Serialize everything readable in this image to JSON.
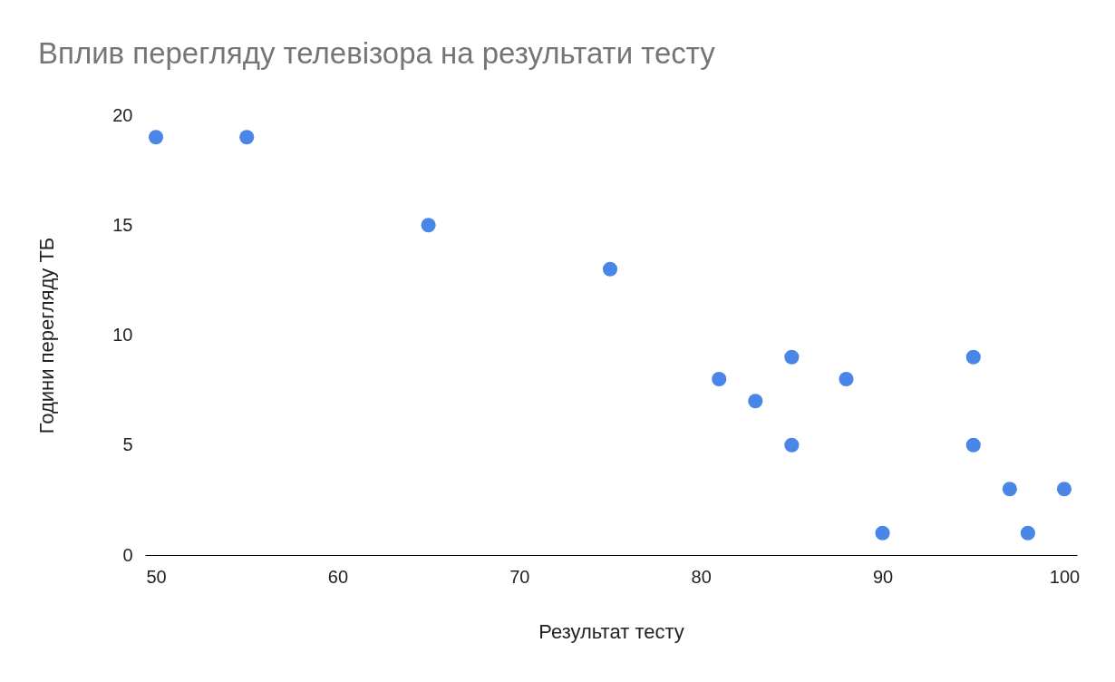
{
  "chart_data": {
    "type": "scatter",
    "title": "Вплив перегляду телевізора на результати тесту",
    "xlabel": "Результат тесту",
    "ylabel": "Години перегляду ТБ",
    "x": [
      50,
      55,
      65,
      75,
      81,
      83,
      85,
      85,
      88,
      90,
      95,
      95,
      97,
      98,
      100
    ],
    "series": [
      {
        "color": "#4a86e8",
        "values": [
          19,
          19,
          15,
          13,
          8,
          7,
          9,
          5,
          8,
          1,
          9,
          5,
          3,
          1,
          3
        ]
      }
    ],
    "xlim": [
      49.4,
      100.7
    ],
    "xticks": [
      50,
      60,
      70,
      80,
      90,
      100
    ],
    "ylim": [
      0,
      20
    ],
    "yticks": [
      0,
      5,
      10,
      15,
      20
    ],
    "grid": false,
    "legend": false,
    "marker": "circle"
  }
}
